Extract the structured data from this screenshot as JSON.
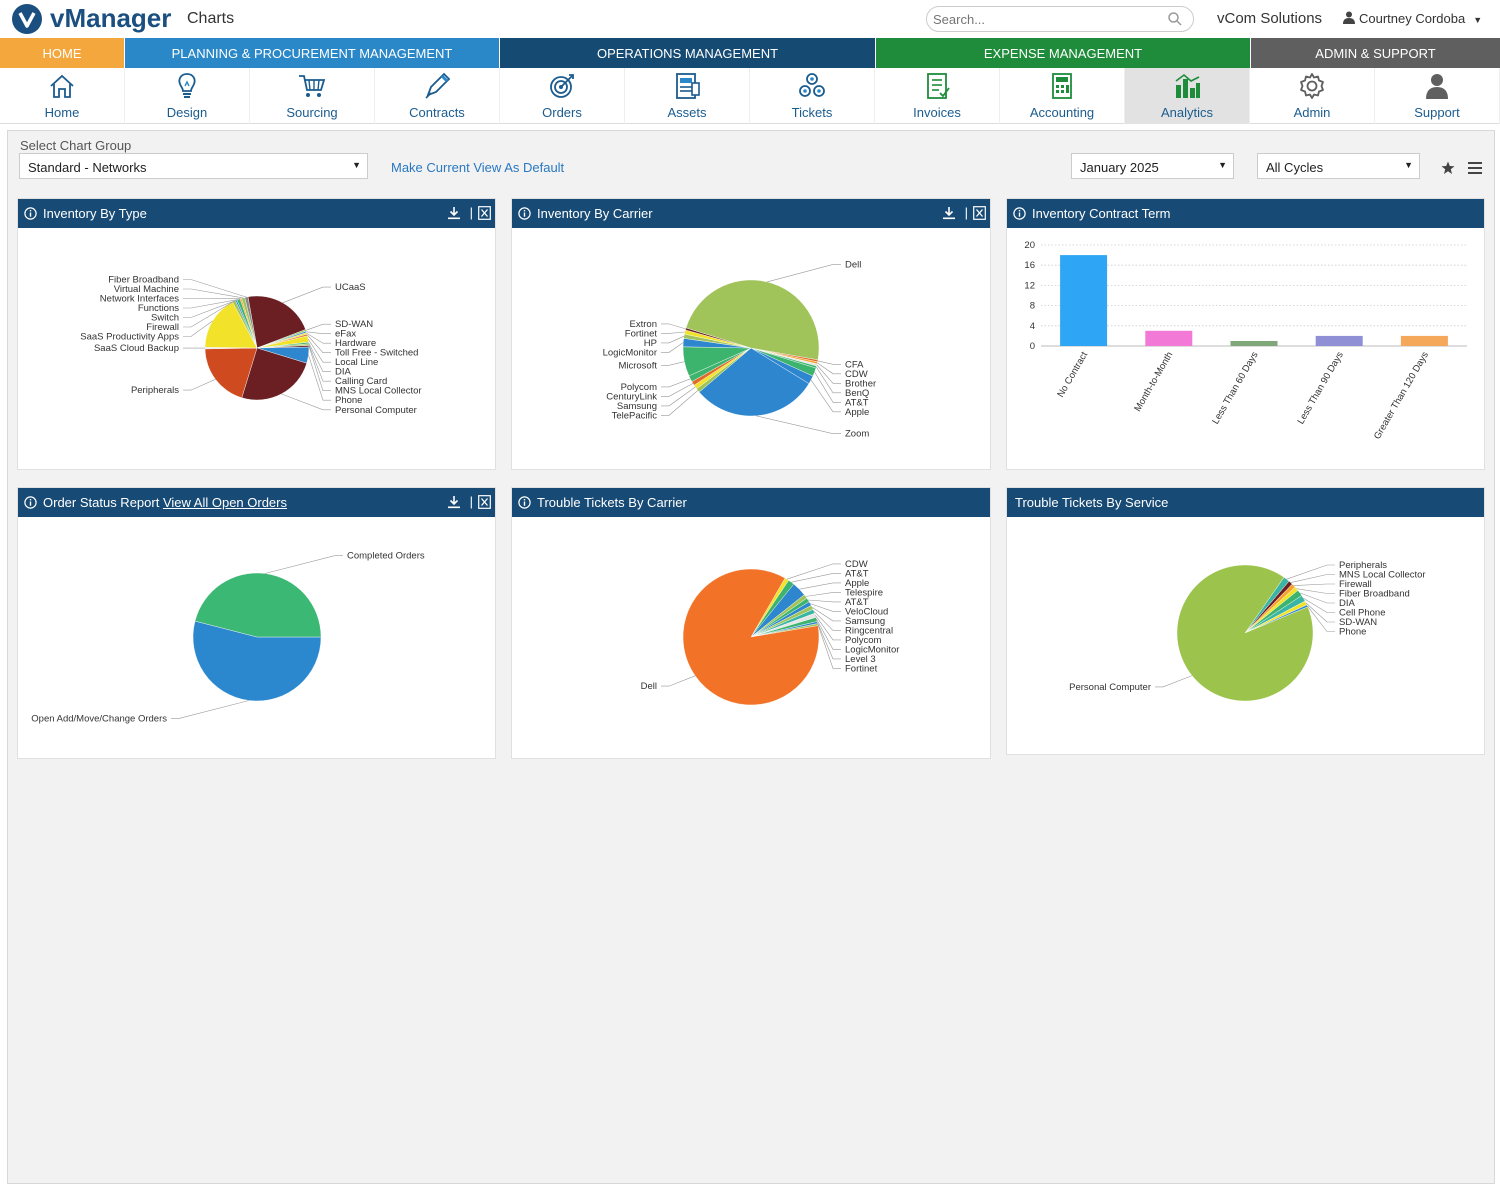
{
  "header": {
    "logo_text": "vManager",
    "page_title": "Charts",
    "search_placeholder": "Search...",
    "company": "vCom Solutions",
    "user": "Courtney Cordoba"
  },
  "categories": [
    {
      "label": "Home",
      "color": "#f4a73c",
      "width": 124
    },
    {
      "label": "Planning & Procurement Management",
      "color": "#2a88c8",
      "width": 375
    },
    {
      "label": "Operations Management",
      "color": "#154a73",
      "width": 376
    },
    {
      "label": "Expense Management",
      "color": "#1e8c3a",
      "width": 375
    },
    {
      "label": "Admin & Support",
      "color": "#5f5f5f",
      "width": 250
    }
  ],
  "modules": [
    {
      "label": "Home",
      "icon": "home-icon"
    },
    {
      "label": "Design",
      "icon": "lightbulb-icon"
    },
    {
      "label": "Sourcing",
      "icon": "cart-icon"
    },
    {
      "label": "Contracts",
      "icon": "pen-icon"
    },
    {
      "label": "Orders",
      "icon": "target-icon"
    },
    {
      "label": "Assets",
      "icon": "assets-icon"
    },
    {
      "label": "Tickets",
      "icon": "tickets-icon"
    },
    {
      "label": "Invoices",
      "icon": "invoice-icon"
    },
    {
      "label": "Accounting",
      "icon": "calculator-icon"
    },
    {
      "label": "Analytics",
      "icon": "bar-chart-icon",
      "active": true
    },
    {
      "label": "Admin",
      "icon": "gear-icon"
    },
    {
      "label": "Support",
      "icon": "person-icon"
    }
  ],
  "toolbar": {
    "chart_group_label": "Select Chart Group",
    "chart_group_value": "Standard - Networks",
    "default_link": "Make Current View As Default",
    "month_value": "January 2025",
    "cycle_value": "All Cycles"
  },
  "panels": {
    "inventory_type": "Inventory By Type",
    "inventory_carrier": "Inventory By Carrier",
    "contract_term": "Inventory Contract Term",
    "order_status": "Order Status Report",
    "order_link": "View All Open Orders",
    "tickets_carrier": "Trouble Tickets By Carrier",
    "tickets_service": "Trouble Tickets By Service"
  },
  "chart_data": [
    {
      "id": "inventory_type",
      "type": "pie",
      "title": "Inventory By Type",
      "slices": [
        {
          "label": "UCaaS",
          "value": 22,
          "color": "#6b1f23"
        },
        {
          "label": "SD-WAN",
          "value": 0.5,
          "color": "#a0c35a"
        },
        {
          "label": "eFax",
          "value": 0.5,
          "color": "#3a8fd3"
        },
        {
          "label": "Hardware",
          "value": 0.5,
          "color": "#f2e32a"
        },
        {
          "label": "Toll Free - Switched",
          "value": 0.5,
          "color": "#e16b2b"
        },
        {
          "label": "Local Line",
          "value": 2,
          "color": "#f2e32a"
        },
        {
          "label": "DIA",
          "value": 0.5,
          "color": "#3db46d"
        },
        {
          "label": "Calling Card",
          "value": 0.5,
          "color": "#a0c35a"
        },
        {
          "label": "MNS Local Collector",
          "value": 0.5,
          "color": "#6b1f23"
        },
        {
          "label": "Phone",
          "value": 5,
          "color": "#2e86cf"
        },
        {
          "label": "Personal Computer",
          "value": 25,
          "color": "#6b1f23"
        },
        {
          "label": "Peripherals",
          "value": 20,
          "color": "#cf4a1f"
        },
        {
          "label": "SaaS Cloud Backup",
          "value": 0.5,
          "color": "#e6e6e6"
        },
        {
          "label": "SaaS Productivity Apps",
          "value": 17,
          "color": "#f2e32a"
        },
        {
          "label": "Firewall",
          "value": 1,
          "color": "#a0c35a"
        },
        {
          "label": "Switch",
          "value": 0.5,
          "color": "#2e86cf"
        },
        {
          "label": "Functions",
          "value": 1,
          "color": "#3db46d"
        },
        {
          "label": "Network Interfaces",
          "value": 0.5,
          "color": "#f5a330"
        },
        {
          "label": "Virtual Machine",
          "value": 1,
          "color": "#a0c35a"
        },
        {
          "label": "Fiber Broadband",
          "value": 1,
          "color": "#888888"
        }
      ]
    },
    {
      "id": "inventory_carrier",
      "type": "pie",
      "title": "Inventory By Carrier",
      "slices": [
        {
          "label": "CFA",
          "value": 0.5,
          "color": "#e16b2b"
        },
        {
          "label": "CDW",
          "value": 0.5,
          "color": "#f5a330"
        },
        {
          "label": "Brother",
          "value": 0.5,
          "color": "#e6e6e6"
        },
        {
          "label": "BenQ",
          "value": 0.5,
          "color": "#3db46d"
        },
        {
          "label": "AT&T",
          "value": 2,
          "color": "#3db46d"
        },
        {
          "label": "Apple",
          "value": 2,
          "color": "#2e86cf"
        },
        {
          "label": "Zoom",
          "value": 30,
          "color": "#2e86cf"
        },
        {
          "label": "TelePacific",
          "value": 1,
          "color": "#a0c35a"
        },
        {
          "label": "Samsung",
          "value": 1,
          "color": "#f2e32a"
        },
        {
          "label": "CenturyLink",
          "value": 1,
          "color": "#e16b2b"
        },
        {
          "label": "Polycom",
          "value": 1.5,
          "color": "#3db46d"
        },
        {
          "label": "Microsoft",
          "value": 7,
          "color": "#3db46d"
        },
        {
          "label": "LogicMonitor",
          "value": 2,
          "color": "#2e86cf"
        },
        {
          "label": "HP",
          "value": 1,
          "color": "#a0c35a"
        },
        {
          "label": "Fortinet",
          "value": 1,
          "color": "#f2e32a"
        },
        {
          "label": "Extron",
          "value": 0.5,
          "color": "#6b1f23"
        },
        {
          "label": "Dell",
          "value": 48,
          "color": "#a0c35a"
        }
      ]
    },
    {
      "id": "contract_term",
      "type": "bar",
      "title": "Inventory Contract Term",
      "categories": [
        "No Contract",
        "Month-to-Month",
        "Less Than 60 Days",
        "Less Than 90 Days",
        "Greater Than 120 Days"
      ],
      "values": [
        18,
        3,
        1,
        2,
        2
      ],
      "colors": [
        "#2ea6f5",
        "#f27ad6",
        "#7fa77a",
        "#8f8fd6",
        "#f5a859"
      ],
      "ylim": [
        0,
        20
      ],
      "yticks": [
        0,
        4,
        8,
        12,
        16,
        20
      ]
    },
    {
      "id": "order_status",
      "type": "pie",
      "title": "Order Status Report",
      "slices": [
        {
          "label": "Open Add/Move/Change Orders",
          "value": 54,
          "color": "#2b88cf"
        },
        {
          "label": "Completed Orders",
          "value": 46,
          "color": "#3bb873"
        }
      ]
    },
    {
      "id": "tickets_carrier",
      "type": "pie",
      "title": "Trouble Tickets By Carrier",
      "slices": [
        {
          "label": "CDW",
          "value": 1,
          "color": "#f2e32a"
        },
        {
          "label": "AT&T",
          "value": 1.5,
          "color": "#3db46d"
        },
        {
          "label": "Apple",
          "value": 3.5,
          "color": "#2e86cf"
        },
        {
          "label": "Telespire",
          "value": 1,
          "color": "#a0c35a"
        },
        {
          "label": "AT&T",
          "value": 1,
          "color": "#3db46d"
        },
        {
          "label": "VeloCloud",
          "value": 1,
          "color": "#2e86cf"
        },
        {
          "label": "Samsung",
          "value": 1,
          "color": "#a0c35a"
        },
        {
          "label": "Ringcentral",
          "value": 1,
          "color": "#3ab5a5"
        },
        {
          "label": "Polycom",
          "value": 1,
          "color": "#e6e6e6"
        },
        {
          "label": "LogicMonitor",
          "value": 1,
          "color": "#3db46d"
        },
        {
          "label": "Level 3",
          "value": 0.5,
          "color": "#2e86cf"
        },
        {
          "label": "Fortinet",
          "value": 0.5,
          "color": "#a0c35a"
        },
        {
          "label": "Dell",
          "value": 86,
          "color": "#f27327"
        }
      ]
    },
    {
      "id": "tickets_service",
      "type": "pie",
      "title": "Trouble Tickets By Service",
      "slices": [
        {
          "label": "Peripherals",
          "value": 1.5,
          "color": "#3ab5a5"
        },
        {
          "label": "MNS Local Collector",
          "value": 1,
          "color": "#6b1f23"
        },
        {
          "label": "Firewall",
          "value": 1,
          "color": "#f5a330"
        },
        {
          "label": "Fiber Broadband",
          "value": 1,
          "color": "#f2e32a"
        },
        {
          "label": "DIA",
          "value": 1.5,
          "color": "#3db46d"
        },
        {
          "label": "Cell Phone",
          "value": 1.5,
          "color": "#3ab5a5"
        },
        {
          "label": "SD-WAN",
          "value": 1,
          "color": "#f2e32a"
        },
        {
          "label": "Phone",
          "value": 0.5,
          "color": "#2e86cf"
        },
        {
          "label": "Personal Computer",
          "value": 91,
          "color": "#9cc34c"
        }
      ]
    }
  ]
}
